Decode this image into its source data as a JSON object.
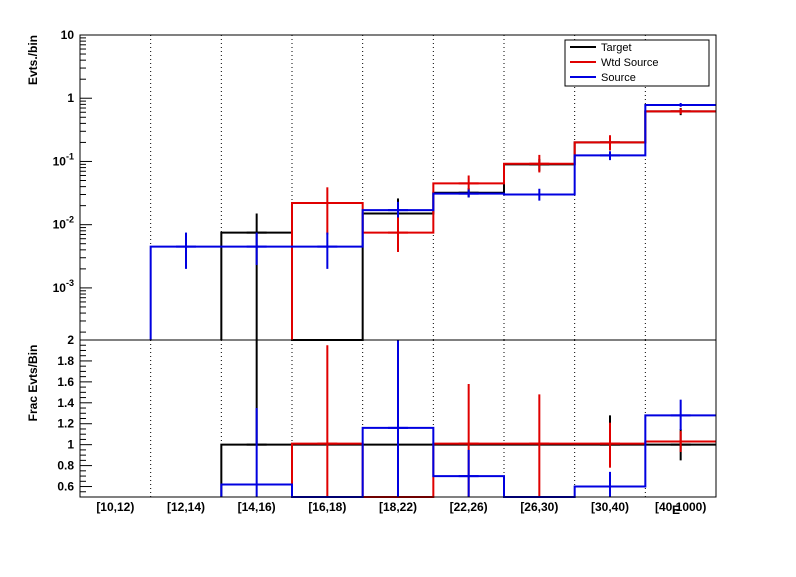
{
  "chart_data": [
    {
      "type": "step",
      "panel": "top",
      "ylabel": "Evts./bin",
      "yscale": "log",
      "ylim": [
        0.00015,
        10
      ],
      "y_ticks": [
        {
          "value": 0.001,
          "base": "10",
          "exp": "-3"
        },
        {
          "value": 0.01,
          "base": "10",
          "exp": "-2"
        },
        {
          "value": 0.1,
          "base": "10",
          "exp": "-1"
        },
        {
          "value": 1,
          "base": "1",
          "exp": ""
        },
        {
          "value": 10,
          "base": "10",
          "exp": ""
        }
      ],
      "grid": "vertical dotted at bin edges",
      "legend_placement": "top-right",
      "categories": [
        "[10,12)",
        "[12,14)",
        "[14,16)",
        "[16,18)",
        "[18,22)",
        "[22,26)",
        "[26,30)",
        "[30,40)",
        "[40,1000)"
      ],
      "series": [
        {
          "name": "Target",
          "color": "#000000",
          "values": [
            0,
            0,
            0.0075,
            0,
            0.015,
            0.032,
            0.09,
            0.2,
            0.62
          ],
          "err_low": [
            0,
            0,
            0.0074,
            0,
            0.008,
            0.005,
            0.02,
            0.05,
            0.08
          ],
          "err_high": [
            0,
            0,
            0.0075,
            0,
            0.011,
            0.006,
            0.02,
            0.05,
            0.08
          ]
        },
        {
          "name": "Wtd Source",
          "color": "#e00000",
          "values": [
            0,
            0,
            0,
            0.022,
            0.0075,
            0.045,
            0.092,
            0.2,
            0.62
          ],
          "err_low": [
            0,
            0,
            0,
            0.015,
            0.0038,
            0.01,
            0.025,
            0.05,
            0.06
          ],
          "err_high": [
            0,
            0,
            0,
            0.017,
            0.0055,
            0.015,
            0.035,
            0.06,
            0.07
          ]
        },
        {
          "name": "Source",
          "color": "#0000e0",
          "values": [
            0,
            0.0045,
            0.0045,
            0.0045,
            0.017,
            0.031,
            0.03,
            0.125,
            0.78
          ],
          "err_low": [
            0,
            0.0025,
            0.0022,
            0.0025,
            0.004,
            0.004,
            0.006,
            0.02,
            0.05
          ],
          "err_high": [
            0,
            0.003,
            0.003,
            0.003,
            0.006,
            0.005,
            0.007,
            0.02,
            0.06
          ]
        }
      ]
    },
    {
      "type": "step",
      "panel": "bottom",
      "ylabel": "Frac Evts/Bin",
      "xlabel": "E",
      "ylim": [
        0.5,
        2.0
      ],
      "y_ticks": [
        0.6,
        0.8,
        1,
        1.2,
        1.4,
        1.6,
        1.8,
        2
      ],
      "categories": [
        "[10,12)",
        "[12,14)",
        "[14,16)",
        "[16,18)",
        "[18,22)",
        "[22,26)",
        "[26,30)",
        "[30,40)",
        "[40,1000)"
      ],
      "series": [
        {
          "name": "Target",
          "color": "#000000",
          "values": [
            0.5,
            0.5,
            1.0,
            1.0,
            1.0,
            1.0,
            1.0,
            1.0,
            1.0
          ],
          "err_low": [
            0,
            0,
            0,
            0,
            0,
            0,
            0,
            0.2,
            0.15
          ],
          "err_high": [
            0,
            0,
            1.0,
            0,
            0,
            0,
            0,
            0.28,
            0.15
          ]
        },
        {
          "name": "Wtd Source",
          "color": "#e00000",
          "values": [
            0.5,
            0.5,
            0.5,
            1.01,
            0.5,
            1.01,
            1.01,
            1.01,
            1.03
          ],
          "err_low": [
            0,
            0,
            0,
            0.51,
            0,
            0.51,
            0.51,
            0.23,
            0.1
          ],
          "err_high": [
            0,
            0,
            0,
            0.94,
            0,
            0.57,
            0.47,
            0.2,
            0.1
          ]
        },
        {
          "name": "Source",
          "color": "#0000e0",
          "values": [
            0.5,
            0.5,
            0.62,
            0.5,
            1.16,
            0.7,
            0.5,
            0.6,
            1.28
          ],
          "err_low": [
            0,
            0,
            0.12,
            0,
            0.66,
            0.2,
            0,
            0.1,
            0.14
          ],
          "err_high": [
            0,
            0,
            0.73,
            0,
            0.84,
            0.25,
            0,
            0.14,
            0.15
          ]
        }
      ]
    }
  ]
}
